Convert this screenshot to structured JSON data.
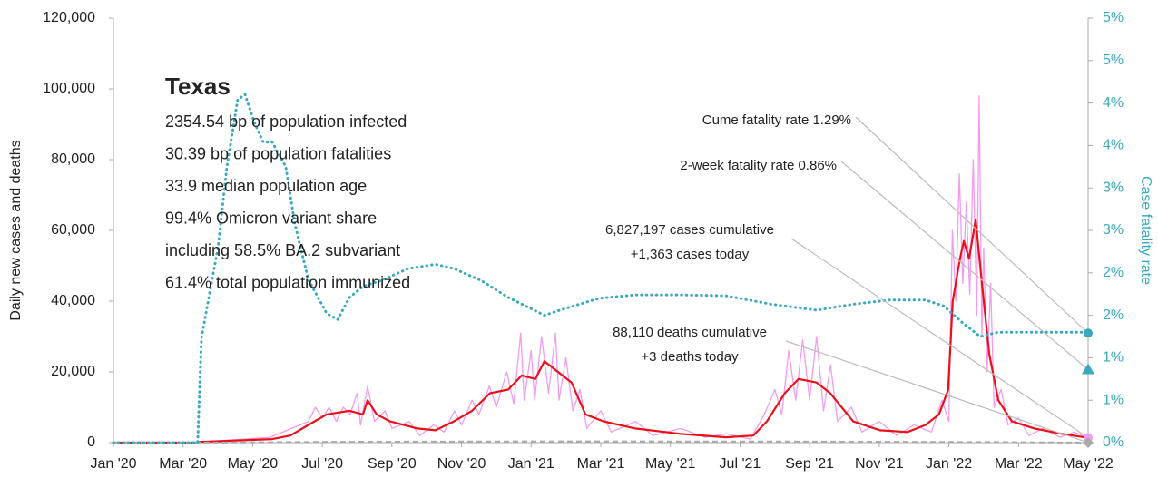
{
  "chart_data": {
    "type": "line",
    "y_label": "Daily new cases and deaths",
    "y2_label": "Case fatality rate",
    "xlim": [
      0,
      28
    ],
    "xticks": [
      {
        "value": 0,
        "label": "Jan '20"
      },
      {
        "value": 2,
        "label": "Mar '20"
      },
      {
        "value": 4,
        "label": "May '20"
      },
      {
        "value": 6,
        "label": "Jul '20"
      },
      {
        "value": 8,
        "label": "Sep '20"
      },
      {
        "value": 10,
        "label": "Nov '20"
      },
      {
        "value": 12,
        "label": "Jan '21"
      },
      {
        "value": 14,
        "label": "Mar '21"
      },
      {
        "value": 16,
        "label": "May '21"
      },
      {
        "value": 18,
        "label": "Jul '21"
      },
      {
        "value": 20,
        "label": "Sep '21"
      },
      {
        "value": 22,
        "label": "Nov '21"
      },
      {
        "value": 24,
        "label": "Jan '22"
      },
      {
        "value": 26,
        "label": "Mar '22"
      },
      {
        "value": 28,
        "label": "May '22"
      }
    ],
    "ylim": [
      0,
      120000
    ],
    "yticks": [
      {
        "value": 0,
        "label": "0"
      },
      {
        "value": 20000,
        "label": "20,000"
      },
      {
        "value": 40000,
        "label": "40,000"
      },
      {
        "value": 60000,
        "label": "60,000"
      },
      {
        "value": 80000,
        "label": "80,000"
      },
      {
        "value": 100000,
        "label": "100,000"
      },
      {
        "value": 120000,
        "label": "120,000"
      }
    ],
    "y2lim": [
      0,
      5
    ],
    "y2ticks": [
      {
        "value": 0,
        "label": "0%"
      },
      {
        "value": 0.5,
        "label": "1%"
      },
      {
        "value": 1,
        "label": "1%"
      },
      {
        "value": 1.5,
        "label": "2%"
      },
      {
        "value": 2,
        "label": "2%"
      },
      {
        "value": 2.5,
        "label": "3%"
      },
      {
        "value": 3,
        "label": "3%"
      },
      {
        "value": 3.5,
        "label": "4%"
      },
      {
        "value": 4,
        "label": "4%"
      },
      {
        "value": 4.5,
        "label": "5%"
      },
      {
        "value": 5,
        "label": "5%"
      }
    ],
    "series": [
      {
        "color": "#f29cf0",
        "axis": "y",
        "style": "thin",
        "x": [
          0,
          2.4,
          3.0,
          4.5,
          5.6,
          5.8,
          6.0,
          6.2,
          6.4,
          6.6,
          6.8,
          7.0,
          7.1,
          7.3,
          7.5,
          7.8,
          8.0,
          8.5,
          8.8,
          9.2,
          9.5,
          9.8,
          10.0,
          10.3,
          10.5,
          10.8,
          11.0,
          11.3,
          11.5,
          11.7,
          11.8,
          12.0,
          12.1,
          12.3,
          12.5,
          12.7,
          12.8,
          13.0,
          13.2,
          13.4,
          13.6,
          14.0,
          14.3,
          15.0,
          15.5,
          16.3,
          17.0,
          17.6,
          18.3,
          18.7,
          19.0,
          19.2,
          19.4,
          19.6,
          19.8,
          20.0,
          20.2,
          20.4,
          20.6,
          20.8,
          21.2,
          21.5,
          22.0,
          22.5,
          23.0,
          23.5,
          23.8,
          24.0,
          24.1,
          24.2,
          24.3,
          24.4,
          24.5,
          24.6,
          24.7,
          24.8,
          24.87,
          24.95,
          25.0,
          25.1,
          25.2,
          25.3,
          25.5,
          25.7,
          26.0,
          26.3,
          26.7,
          27.2,
          27.6,
          28.0
        ],
        "values": [
          0,
          0,
          500,
          1500,
          6000,
          10000,
          7000,
          10000,
          6000,
          10000,
          8000,
          14000,
          5000,
          16000,
          6000,
          9000,
          4000,
          6000,
          2000,
          5000,
          3000,
          9000,
          5000,
          12000,
          8000,
          16000,
          10000,
          20000,
          11000,
          31000,
          12000,
          26000,
          12000,
          30000,
          14000,
          31000,
          12000,
          24000,
          9000,
          15000,
          4000,
          9000,
          3000,
          6000,
          2000,
          4000,
          1500,
          2500,
          1000,
          8000,
          15000,
          8000,
          26000,
          12000,
          29000,
          12000,
          30000,
          9000,
          22000,
          6000,
          10000,
          3000,
          6000,
          2000,
          5000,
          3000,
          12000,
          6000,
          60000,
          40000,
          76000,
          45000,
          68000,
          42000,
          80000,
          36000,
          98000,
          30000,
          55000,
          20000,
          45000,
          10000,
          15000,
          5000,
          7000,
          2000,
          4000,
          1500,
          3000,
          1200
        ]
      },
      {
        "color": "#e8111b",
        "axis": "y",
        "style": "solid",
        "x": [
          0,
          2.35,
          2.48,
          4.56,
          5.08,
          5.6,
          6.13,
          6.78,
          7.17,
          7.3,
          7.56,
          7.95,
          8.73,
          9.25,
          9.78,
          10.3,
          10.82,
          11.34,
          11.73,
          12.12,
          12.38,
          12.77,
          13.16,
          13.56,
          14.08,
          14.99,
          16.29,
          17.6,
          18.38,
          18.77,
          19.29,
          19.68,
          20.2,
          20.59,
          21.25,
          22.03,
          22.81,
          23.33,
          23.72,
          23.98,
          24.11,
          24.32,
          24.43,
          24.58,
          24.77,
          24.95,
          25.16,
          25.42,
          25.81,
          26.46,
          27.24,
          28.0
        ],
        "values": [
          0,
          0,
          200,
          1000,
          2000,
          5000,
          8000,
          9000,
          8000,
          12000,
          8000,
          6000,
          4000,
          3500,
          6000,
          9000,
          14000,
          15000,
          19000,
          18000,
          23000,
          20000,
          17000,
          8000,
          6000,
          4000,
          2500,
          1500,
          2000,
          6000,
          14000,
          18000,
          17000,
          14000,
          6000,
          3500,
          3000,
          5000,
          8000,
          15000,
          40000,
          52000,
          57000,
          52000,
          63000,
          45000,
          25000,
          12000,
          6000,
          4000,
          2500,
          1363
        ]
      },
      {
        "color": "#aaaaaa",
        "axis": "y",
        "style": "dashed",
        "x": [
          0,
          3,
          6,
          7.5,
          12.5,
          19.5,
          25,
          28
        ],
        "values": [
          0,
          20,
          200,
          250,
          350,
          300,
          150,
          3
        ]
      },
      {
        "color": "#3aa9bd",
        "axis": "y2",
        "style": "dotted",
        "x": [
          0,
          2.42,
          2.53,
          2.74,
          3.0,
          3.26,
          3.57,
          3.78,
          4.04,
          4.3,
          4.56,
          4.95,
          5.21,
          5.6,
          6.13,
          6.44,
          6.78,
          7.17,
          7.69,
          8.47,
          9.25,
          9.78,
          10.56,
          11.34,
          12.38,
          12.9,
          13.95,
          14.99,
          16.29,
          17.6,
          18.9,
          20.2,
          21.25,
          22.29,
          23.33,
          23.85,
          24.37,
          24.9,
          25.42,
          26.72,
          28.0
        ],
        "values": [
          0,
          0,
          1.23,
          1.71,
          2.29,
          3.25,
          4.04,
          4.1,
          3.78,
          3.54,
          3.54,
          3.25,
          2.58,
          1.92,
          1.52,
          1.45,
          1.71,
          1.84,
          1.91,
          2.05,
          2.1,
          2.05,
          1.91,
          1.71,
          1.5,
          1.57,
          1.7,
          1.74,
          1.74,
          1.73,
          1.63,
          1.56,
          1.63,
          1.68,
          1.68,
          1.61,
          1.42,
          1.25,
          1.3,
          1.3,
          1.3
        ]
      }
    ],
    "info": {
      "title": "Texas",
      "lines": [
        "2354.54 bp of population infected",
        "30.39 bp of population fatalities",
        "33.9 median population age",
        "99.4% Omicron variant share",
        "including 58.5% BA.2 subvariant",
        "61.4% total population immunized"
      ]
    },
    "annotations": [
      {
        "text": [
          "Cume fatality rate 1.29%"
        ],
        "value": 1.29,
        "axis": "y2",
        "marker": "circle",
        "color": "#3aa9bd"
      },
      {
        "text": [
          "2-week fatality rate 0.86%"
        ],
        "value": 0.86,
        "axis": "y2",
        "marker": "triangle",
        "color": "#3aa9bd"
      },
      {
        "text": [
          "6,827,197 cases cumulative",
          "+1,363 cases today"
        ],
        "value": 1363,
        "axis": "y",
        "marker": "circle",
        "color": "#f29cf0"
      },
      {
        "text": [
          "88,110 deaths cumulative",
          "+3 deaths today"
        ],
        "value": 3,
        "axis": "y",
        "marker": "diamond",
        "color": "#aaaaaa"
      }
    ]
  }
}
